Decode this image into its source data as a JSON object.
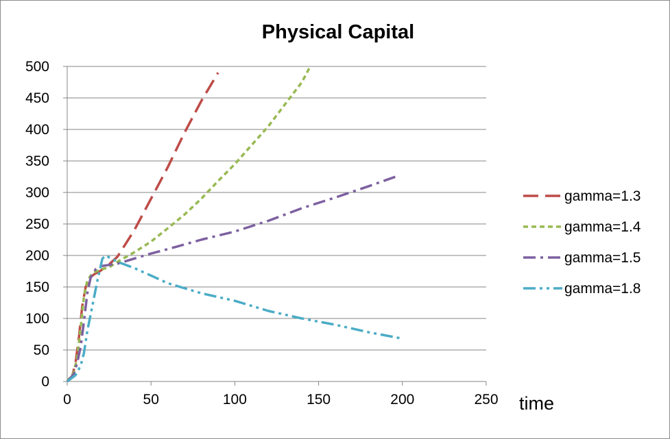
{
  "chart_data": {
    "type": "line",
    "title": "Physical Capital",
    "xlabel": "time",
    "ylabel": "",
    "xlim": [
      0,
      250
    ],
    "ylim": [
      0,
      500
    ],
    "x_ticks": [
      0,
      50,
      100,
      150,
      200,
      250
    ],
    "y_ticks": [
      0,
      50,
      100,
      150,
      200,
      250,
      300,
      350,
      400,
      450,
      500
    ],
    "grid": "horizontal",
    "legend_position": "right",
    "series": [
      {
        "name": "gamma=1.3",
        "color": "#be4b48",
        "dash": "long-dash",
        "points": [
          [
            0,
            0
          ],
          [
            3,
            8
          ],
          [
            5,
            30
          ],
          [
            7,
            70
          ],
          [
            9,
            120
          ],
          [
            11,
            150
          ],
          [
            13,
            163
          ],
          [
            16,
            170
          ],
          [
            20,
            176
          ],
          [
            25,
            186
          ],
          [
            30,
            198
          ],
          [
            40,
            240
          ],
          [
            50,
            290
          ],
          [
            60,
            340
          ],
          [
            70,
            395
          ],
          [
            80,
            445
          ],
          [
            90,
            490
          ]
        ]
      },
      {
        "name": "gamma=1.4",
        "color": "#98b954",
        "dash": "short-dash",
        "points": [
          [
            0,
            0
          ],
          [
            4,
            15
          ],
          [
            6,
            40
          ],
          [
            8,
            85
          ],
          [
            10,
            135
          ],
          [
            12,
            160
          ],
          [
            15,
            172
          ],
          [
            20,
            178
          ],
          [
            25,
            181
          ],
          [
            30,
            190
          ],
          [
            40,
            205
          ],
          [
            50,
            222
          ],
          [
            60,
            243
          ],
          [
            70,
            265
          ],
          [
            80,
            290
          ],
          [
            90,
            318
          ],
          [
            100,
            345
          ],
          [
            110,
            375
          ],
          [
            120,
            405
          ],
          [
            130,
            440
          ],
          [
            140,
            475
          ],
          [
            145,
            500
          ]
        ]
      },
      {
        "name": "gamma=1.5",
        "color": "#7d60a0",
        "dash": "dash-dot",
        "points": [
          [
            0,
            0
          ],
          [
            4,
            12
          ],
          [
            6,
            30
          ],
          [
            8,
            55
          ],
          [
            10,
            95
          ],
          [
            12,
            140
          ],
          [
            14,
            165
          ],
          [
            17,
            178
          ],
          [
            20,
            183
          ],
          [
            25,
            185
          ],
          [
            30,
            187
          ],
          [
            40,
            195
          ],
          [
            50,
            203
          ],
          [
            60,
            210
          ],
          [
            80,
            225
          ],
          [
            100,
            238
          ],
          [
            120,
            255
          ],
          [
            140,
            275
          ],
          [
            160,
            292
          ],
          [
            180,
            310
          ],
          [
            198,
            327
          ]
        ]
      },
      {
        "name": "gamma=1.8",
        "color": "#4bacc6",
        "dash": "dash-dot-dot",
        "points": [
          [
            0,
            0
          ],
          [
            5,
            10
          ],
          [
            8,
            25
          ],
          [
            10,
            45
          ],
          [
            12,
            80
          ],
          [
            15,
            120
          ],
          [
            18,
            160
          ],
          [
            21,
            195
          ],
          [
            23,
            200
          ],
          [
            25,
            197
          ],
          [
            30,
            190
          ],
          [
            40,
            180
          ],
          [
            50,
            168
          ],
          [
            60,
            156
          ],
          [
            80,
            140
          ],
          [
            100,
            128
          ],
          [
            120,
            112
          ],
          [
            140,
            100
          ],
          [
            160,
            90
          ],
          [
            180,
            78
          ],
          [
            200,
            68
          ]
        ]
      }
    ]
  }
}
